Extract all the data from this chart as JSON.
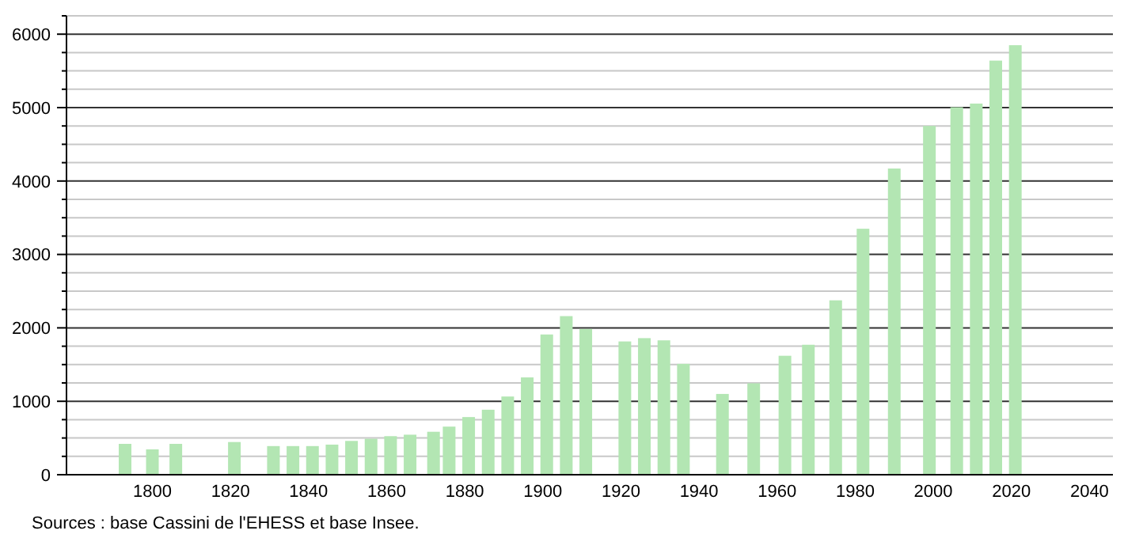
{
  "chart_data": {
    "type": "bar",
    "x": [
      1793,
      1800,
      1806,
      1821,
      1831,
      1836,
      1841,
      1846,
      1851,
      1856,
      1861,
      1866,
      1872,
      1876,
      1881,
      1886,
      1891,
      1896,
      1901,
      1906,
      1911,
      1921,
      1926,
      1931,
      1936,
      1946,
      1954,
      1962,
      1968,
      1975,
      1982,
      1990,
      1999,
      2006,
      2011,
      2016,
      2021
    ],
    "values": [
      420,
      345,
      420,
      445,
      390,
      390,
      390,
      410,
      460,
      490,
      525,
      545,
      585,
      655,
      785,
      885,
      1065,
      1325,
      1910,
      2160,
      1985,
      1815,
      1860,
      1830,
      1510,
      1100,
      1245,
      1620,
      1770,
      2375,
      3350,
      4170,
      4750,
      5005,
      5055,
      5640,
      5850
    ],
    "color": "#b3e6b3",
    "xlim": [
      1778,
      2046
    ],
    "xticks": [
      1800,
      1820,
      1840,
      1860,
      1880,
      1900,
      1920,
      1940,
      1960,
      1980,
      2000,
      2020,
      2040
    ],
    "ylim": [
      0,
      6250
    ],
    "yticks": [
      0,
      {
        "value": 250,
        "label": null
      },
      {
        "value": 500,
        "label": null
      },
      {
        "value": 750,
        "label": null
      },
      1000,
      {
        "value": 1250,
        "label": null
      },
      {
        "value": 1500,
        "label": null
      },
      {
        "value": 1750,
        "label": null
      },
      2000,
      {
        "value": 2250,
        "label": null
      },
      {
        "value": 2500,
        "label": null
      },
      {
        "value": 2750,
        "label": null
      },
      3000,
      {
        "value": 3250,
        "label": null
      },
      {
        "value": 3500,
        "label": null
      },
      {
        "value": 3750,
        "label": null
      },
      4000,
      {
        "value": 4250,
        "label": null
      },
      {
        "value": 4500,
        "label": null
      },
      {
        "value": 4750,
        "label": null
      },
      5000,
      {
        "value": 5250,
        "label": null
      },
      {
        "value": 5500,
        "label": null
      },
      {
        "value": 5750,
        "label": null
      },
      6000,
      {
        "value": 6250,
        "label": null
      }
    ],
    "grid": "y",
    "annotations": [
      "Sources : base Cassini de l'EHESS et base Insee."
    ]
  }
}
